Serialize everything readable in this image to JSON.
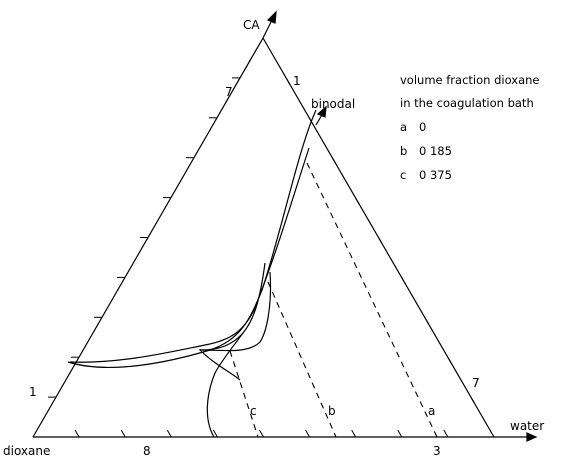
{
  "vertices": {
    "top": "CA",
    "left": "dioxane",
    "right": "water"
  },
  "tick_labels": [
    "7",
    "1",
    "1",
    "7",
    "8",
    "3"
  ],
  "curve_label": "binodal",
  "legend": {
    "line1": "volume fraction dioxane",
    "line2": "in the coagulation bath",
    "items": [
      {
        "key": "a",
        "value": "0"
      },
      {
        "key": "b",
        "value": "0 185"
      },
      {
        "key": "c",
        "value": "0 375"
      }
    ]
  },
  "path_labels": [
    "c",
    "b",
    "a"
  ]
}
